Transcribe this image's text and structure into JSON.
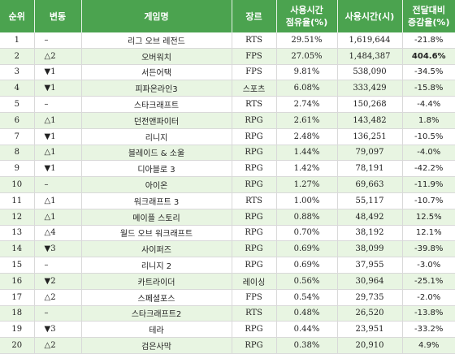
{
  "headers": [
    "순위",
    "변동",
    "게임명",
    "장르",
    "사용시간\n점유율(%)",
    "사용시간(시)",
    "전달대비\n증감율(%)"
  ],
  "rows": [
    {
      "rank": "1",
      "trend": "–",
      "name": "리그 오브 레전드",
      "genre": "RTS",
      "share": "29.51%",
      "hours": "1,619,644",
      "change": "-21.8%"
    },
    {
      "rank": "2",
      "trend": "△2",
      "name": "오버워치",
      "genre": "FPS",
      "share": "27.05%",
      "hours": "1,484,387",
      "change": "404.6%"
    },
    {
      "rank": "3",
      "trend": "▼1",
      "name": "서든어택",
      "genre": "FPS",
      "share": "9.81%",
      "hours": "538,090",
      "change": "-34.5%"
    },
    {
      "rank": "4",
      "trend": "▼1",
      "name": "피파온라인3",
      "genre": "스포츠",
      "share": "6.08%",
      "hours": "333,429",
      "change": "-15.8%"
    },
    {
      "rank": "5",
      "trend": "–",
      "name": "스타크래프트",
      "genre": "RTS",
      "share": "2.74%",
      "hours": "150,268",
      "change": "-4.4%"
    },
    {
      "rank": "6",
      "trend": "△1",
      "name": "던전앤파이터",
      "genre": "RPG",
      "share": "2.61%",
      "hours": "143,482",
      "change": "1.8%"
    },
    {
      "rank": "7",
      "trend": "▼1",
      "name": "리니지",
      "genre": "RPG",
      "share": "2.48%",
      "hours": "136,251",
      "change": "-10.5%"
    },
    {
      "rank": "8",
      "trend": "△1",
      "name": "블레이드 & 소울",
      "genre": "RPG",
      "share": "1.44%",
      "hours": "79,097",
      "change": "-4.0%"
    },
    {
      "rank": "9",
      "trend": "▼1",
      "name": "디아블로 3",
      "genre": "RPG",
      "share": "1.42%",
      "hours": "78,191",
      "change": "-42.2%"
    },
    {
      "rank": "10",
      "trend": "–",
      "name": "아이온",
      "genre": "RPG",
      "share": "1.27%",
      "hours": "69,663",
      "change": "-11.9%"
    },
    {
      "rank": "11",
      "trend": "△1",
      "name": "워크래프트 3",
      "genre": "RTS",
      "share": "1.00%",
      "hours": "55,117",
      "change": "-10.7%"
    },
    {
      "rank": "12",
      "trend": "△1",
      "name": "메이플 스토리",
      "genre": "RPG",
      "share": "0.88%",
      "hours": "48,492",
      "change": "12.5%"
    },
    {
      "rank": "13",
      "trend": "△4",
      "name": "월드 오브 워크래프트",
      "genre": "RPG",
      "share": "0.70%",
      "hours": "38,192",
      "change": "12.1%"
    },
    {
      "rank": "14",
      "trend": "▼3",
      "name": "사이퍼즈",
      "genre": "RPG",
      "share": "0.69%",
      "hours": "38,099",
      "change": "-39.8%"
    },
    {
      "rank": "15",
      "trend": "–",
      "name": "리니지 2",
      "genre": "RPG",
      "share": "0.69%",
      "hours": "37,955",
      "change": "-3.0%"
    },
    {
      "rank": "16",
      "trend": "▼2",
      "name": "카트라이더",
      "genre": "레이싱",
      "share": "0.56%",
      "hours": "30,964",
      "change": "-25.1%"
    },
    {
      "rank": "17",
      "trend": "△2",
      "name": "스페셜포스",
      "genre": "FPS",
      "share": "0.54%",
      "hours": "29,735",
      "change": "-2.0%"
    },
    {
      "rank": "18",
      "trend": "–",
      "name": "스타크래프트2",
      "genre": "RTS",
      "share": "0.48%",
      "hours": "26,520",
      "change": "-13.8%"
    },
    {
      "rank": "19",
      "trend": "▼3",
      "name": "테라",
      "genre": "RPG",
      "share": "0.44%",
      "hours": "23,951",
      "change": "-33.2%"
    },
    {
      "rank": "20",
      "trend": "△2",
      "name": "검은사막",
      "genre": "RPG",
      "share": "0.38%",
      "hours": "20,910",
      "change": "4.9%"
    }
  ],
  "colors": {
    "header_bg": "#4ba34f",
    "alt_row": "#e8f5e2"
  }
}
